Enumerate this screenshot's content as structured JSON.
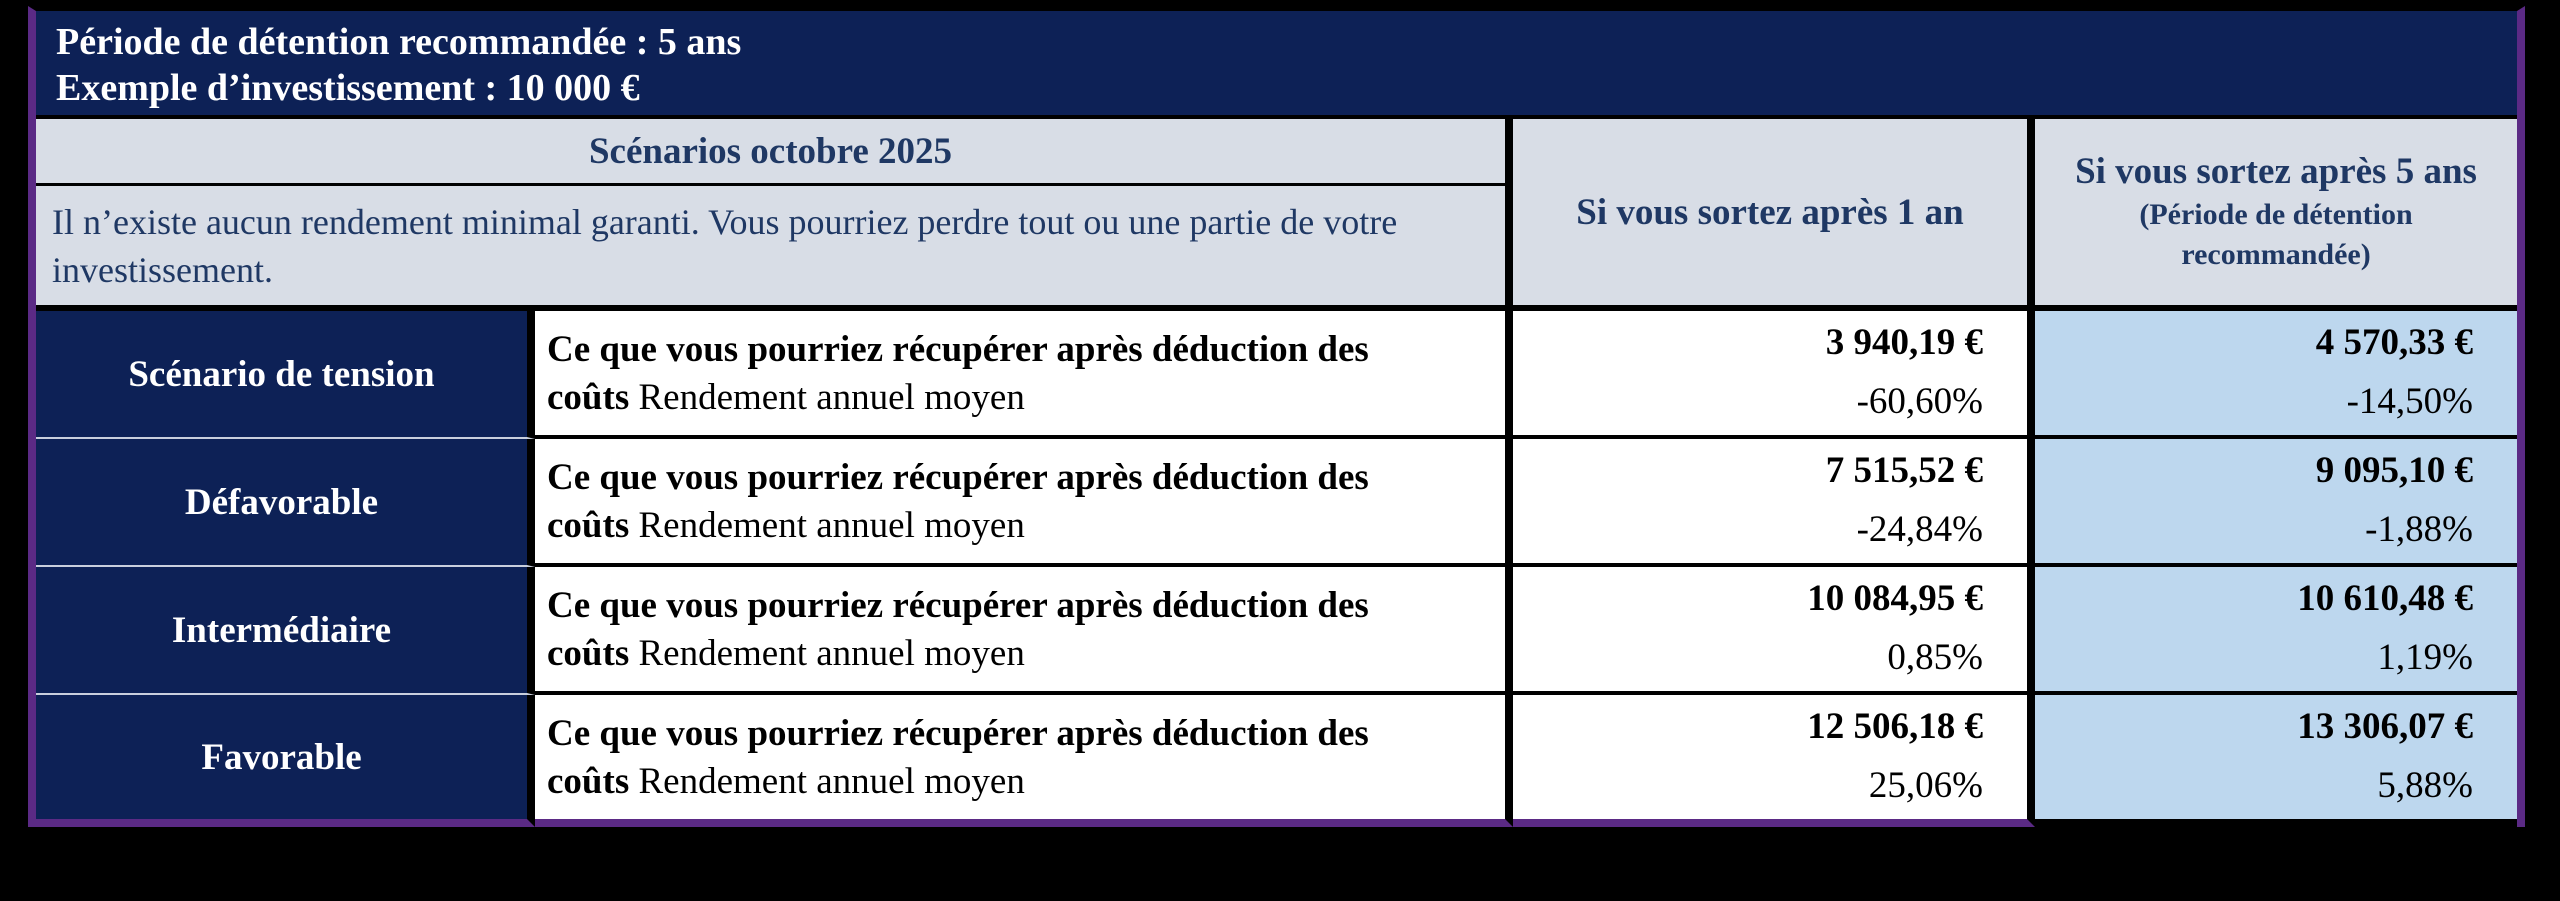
{
  "header": {
    "line1": "Période de détention recommandée : 5 ans",
    "line2": "Exemple d’investissement : 10 000 €"
  },
  "scenarios_header": {
    "title": "Scénarios octobre 2025",
    "note": "Il n’existe aucun rendement minimal garanti. Vous pourriez perdre tout ou une partie de votre investissement."
  },
  "columns": {
    "exit_1yr": "Si vous sortez après 1 an",
    "exit_rhp": "Si vous sortez après 5 ans",
    "exit_rhp_sub": "(Période de détention recommandée)"
  },
  "row_description": {
    "bold": "Ce que vous pourriez récupérer après déduction des coûts",
    "regular": " Rendement annuel moyen"
  },
  "rows": [
    {
      "label": "Scénario de tension",
      "exit_1yr_amount": "3 940,19 €",
      "exit_1yr_return": "-60,60%",
      "exit_rhp_amount": "4 570,33 €",
      "exit_rhp_return": "-14,50%"
    },
    {
      "label": "Défavorable",
      "exit_1yr_amount": "7 515,52 €",
      "exit_1yr_return": "-24,84%",
      "exit_rhp_amount": "9 095,10 €",
      "exit_rhp_return": "-1,88%"
    },
    {
      "label": "Intermédiaire",
      "exit_1yr_amount": "10 084,95 €",
      "exit_1yr_return": "0,85%",
      "exit_rhp_amount": "10 610,48 €",
      "exit_rhp_return": "1,19%"
    },
    {
      "label": "Favorable",
      "exit_1yr_amount": "12 506,18 €",
      "exit_1yr_return": "25,06%",
      "exit_rhp_amount": "13 306,07 €",
      "exit_rhp_return": "5,88%"
    }
  ],
  "colors": {
    "navy": "#0d2156",
    "header_bg": "#d8dde6",
    "header_text": "#1f3864",
    "highlight_column": "#bdd7ee",
    "outer_border_purple": "#5b2a85",
    "cell_white": "#ffffff",
    "background": "#000000"
  }
}
